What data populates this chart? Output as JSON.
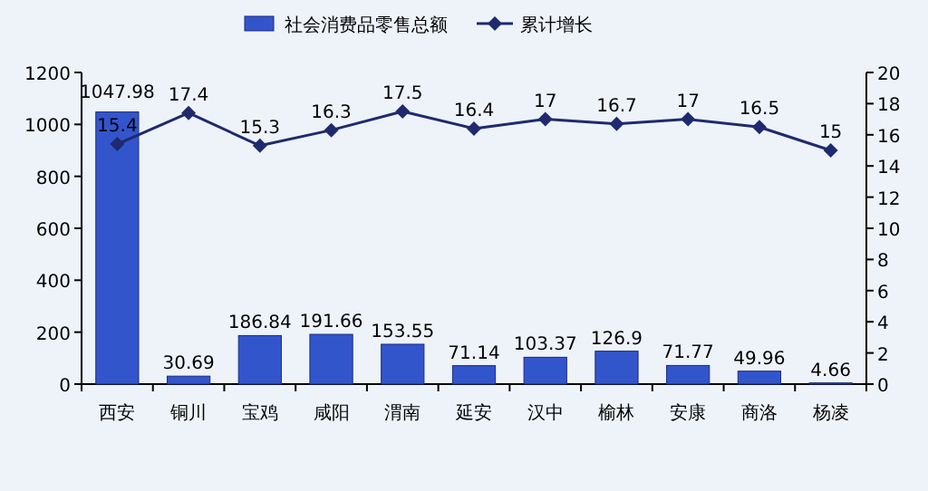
{
  "chart_data": {
    "type": "bar",
    "categories": [
      "西安",
      "铜川",
      "宝鸡",
      "咸阳",
      "渭南",
      "延安",
      "汉中",
      "榆林",
      "安康",
      "商洛",
      "杨凌"
    ],
    "series": [
      {
        "name": "社会消费品零售总额",
        "color": "#3355cc",
        "values": [
          1047.98,
          30.69,
          186.84,
          191.66,
          153.55,
          71.14,
          103.37,
          126.9,
          71.77,
          49.96,
          4.66
        ]
      },
      {
        "name": "累计增长",
        "type": "line",
        "axis": "y2",
        "color": "#1f2a6e",
        "marker": "diamond",
        "values": [
          15.4,
          17.4,
          15.3,
          16.3,
          17.5,
          16.4,
          17,
          16.7,
          17,
          16.5,
          15
        ]
      }
    ],
    "ylim": [
      0,
      1200
    ],
    "yticks": [
      0,
      200,
      400,
      600,
      800,
      1000,
      1200
    ],
    "y2lim": [
      0,
      20
    ],
    "y2ticks": [
      0,
      2,
      4,
      6,
      8,
      10,
      12,
      14,
      16,
      18,
      20
    ],
    "data_labels": true,
    "legend": "top"
  }
}
